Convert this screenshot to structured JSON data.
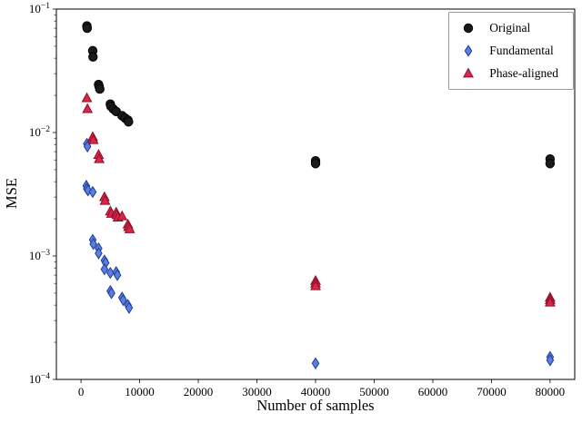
{
  "chart_data": {
    "type": "scatter",
    "title": "",
    "xlabel": "Number of samples",
    "ylabel": "MSE",
    "xlim": [
      -4200,
      84200
    ],
    "ylim": [
      0.0001,
      0.1
    ],
    "y_scale": "log",
    "x_ticks": [
      0,
      10000,
      20000,
      30000,
      40000,
      50000,
      60000,
      70000,
      80000
    ],
    "y_tick_exponents": [
      -1,
      -2,
      -3,
      -4
    ],
    "grid": false,
    "legend_position": "upper right",
    "series": [
      {
        "name": "Original",
        "marker": "circle",
        "color": "#1a1a1a",
        "edge": "#000000",
        "points": [
          [
            1000,
            0.073
          ],
          [
            1050,
            0.07
          ],
          [
            2000,
            0.046
          ],
          [
            2050,
            0.041
          ],
          [
            3000,
            0.0245
          ],
          [
            3100,
            0.0235
          ],
          [
            3200,
            0.0225
          ],
          [
            5000,
            0.017
          ],
          [
            5100,
            0.0163
          ],
          [
            5500,
            0.0155
          ],
          [
            6000,
            0.0148
          ],
          [
            7000,
            0.0137
          ],
          [
            7500,
            0.0131
          ],
          [
            8000,
            0.0126
          ],
          [
            8100,
            0.0122
          ],
          [
            40000,
            0.0059
          ],
          [
            40000,
            0.0056
          ],
          [
            80000,
            0.0061
          ],
          [
            80000,
            0.0056
          ]
        ]
      },
      {
        "name": "Fundamental",
        "marker": "diamond",
        "color": "#5b7fe0",
        "edge": "#1f3d99",
        "points": [
          [
            1000,
            0.0081
          ],
          [
            1100,
            0.0077
          ],
          [
            900,
            0.0037
          ],
          [
            1000,
            0.0035
          ],
          [
            1200,
            0.0034
          ],
          [
            2000,
            0.0033
          ],
          [
            2000,
            0.00135
          ],
          [
            2100,
            0.00125
          ],
          [
            3000,
            0.00115
          ],
          [
            3000,
            0.00105
          ],
          [
            4000,
            0.00092
          ],
          [
            4200,
            0.00088
          ],
          [
            4000,
            0.00078
          ],
          [
            5000,
            0.00073
          ],
          [
            6000,
            0.00074
          ],
          [
            6200,
            0.0007
          ],
          [
            5000,
            0.00052
          ],
          [
            5200,
            0.0005
          ],
          [
            7000,
            0.00046
          ],
          [
            7200,
            0.00044
          ],
          [
            8000,
            0.0004
          ],
          [
            8200,
            0.00038
          ],
          [
            40000,
            0.000135
          ],
          [
            80000,
            0.000152
          ],
          [
            80000,
            0.000143
          ]
        ]
      },
      {
        "name": "Phase-aligned",
        "marker": "triangle",
        "color": "#d8274a",
        "edge": "#8f0f26",
        "points": [
          [
            1000,
            0.019
          ],
          [
            1100,
            0.0155
          ],
          [
            2000,
            0.0092
          ],
          [
            2100,
            0.0087
          ],
          [
            3000,
            0.0066
          ],
          [
            3100,
            0.0061
          ],
          [
            4000,
            0.003
          ],
          [
            4100,
            0.0028
          ],
          [
            5000,
            0.0023
          ],
          [
            5200,
            0.0022
          ],
          [
            6000,
            0.00225
          ],
          [
            6100,
            0.00215
          ],
          [
            6300,
            0.00205
          ],
          [
            7000,
            0.0021
          ],
          [
            8000,
            0.0018
          ],
          [
            8100,
            0.00172
          ],
          [
            8300,
            0.00165
          ],
          [
            40000,
            0.00063
          ],
          [
            40000,
            0.0006
          ],
          [
            40000,
            0.00057
          ],
          [
            80000,
            0.00046
          ],
          [
            80000,
            0.00044
          ],
          [
            80000,
            0.00042
          ]
        ]
      }
    ]
  }
}
